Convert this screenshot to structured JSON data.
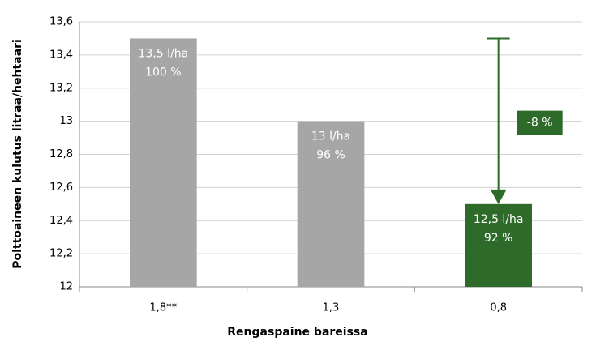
{
  "chart_data": {
    "type": "bar",
    "x_label": "Rengaspaine bareissa",
    "y_label": "Polttoaineen kulutus litraa/hehtaari",
    "categories": [
      "1,8**",
      "1,3",
      "0,8"
    ],
    "values": [
      13.5,
      13.0,
      12.5
    ],
    "value_labels": [
      "13,5 l/ha",
      "13 l/ha",
      "12,5 l/ha"
    ],
    "percent_labels": [
      "100 %",
      "96 %",
      "92 %"
    ],
    "colors": [
      "#a6a6a6",
      "#a6a6a6",
      "#2e6b2a"
    ],
    "annotation": "-8 %",
    "ylim": [
      12,
      13.6
    ],
    "yticks": [
      12,
      {
        "value": 12.2,
        "label": "12,2"
      },
      {
        "value": 12.4,
        "label": "12,4"
      },
      {
        "value": 12.6,
        "label": "12,6"
      },
      {
        "value": 12.8,
        "label": "12,8"
      },
      13,
      {
        "value": 13.2,
        "label": "13,2"
      },
      {
        "value": 13.4,
        "label": "13,4"
      },
      {
        "value": 13.6,
        "label": "13,6"
      }
    ],
    "grid": true
  }
}
